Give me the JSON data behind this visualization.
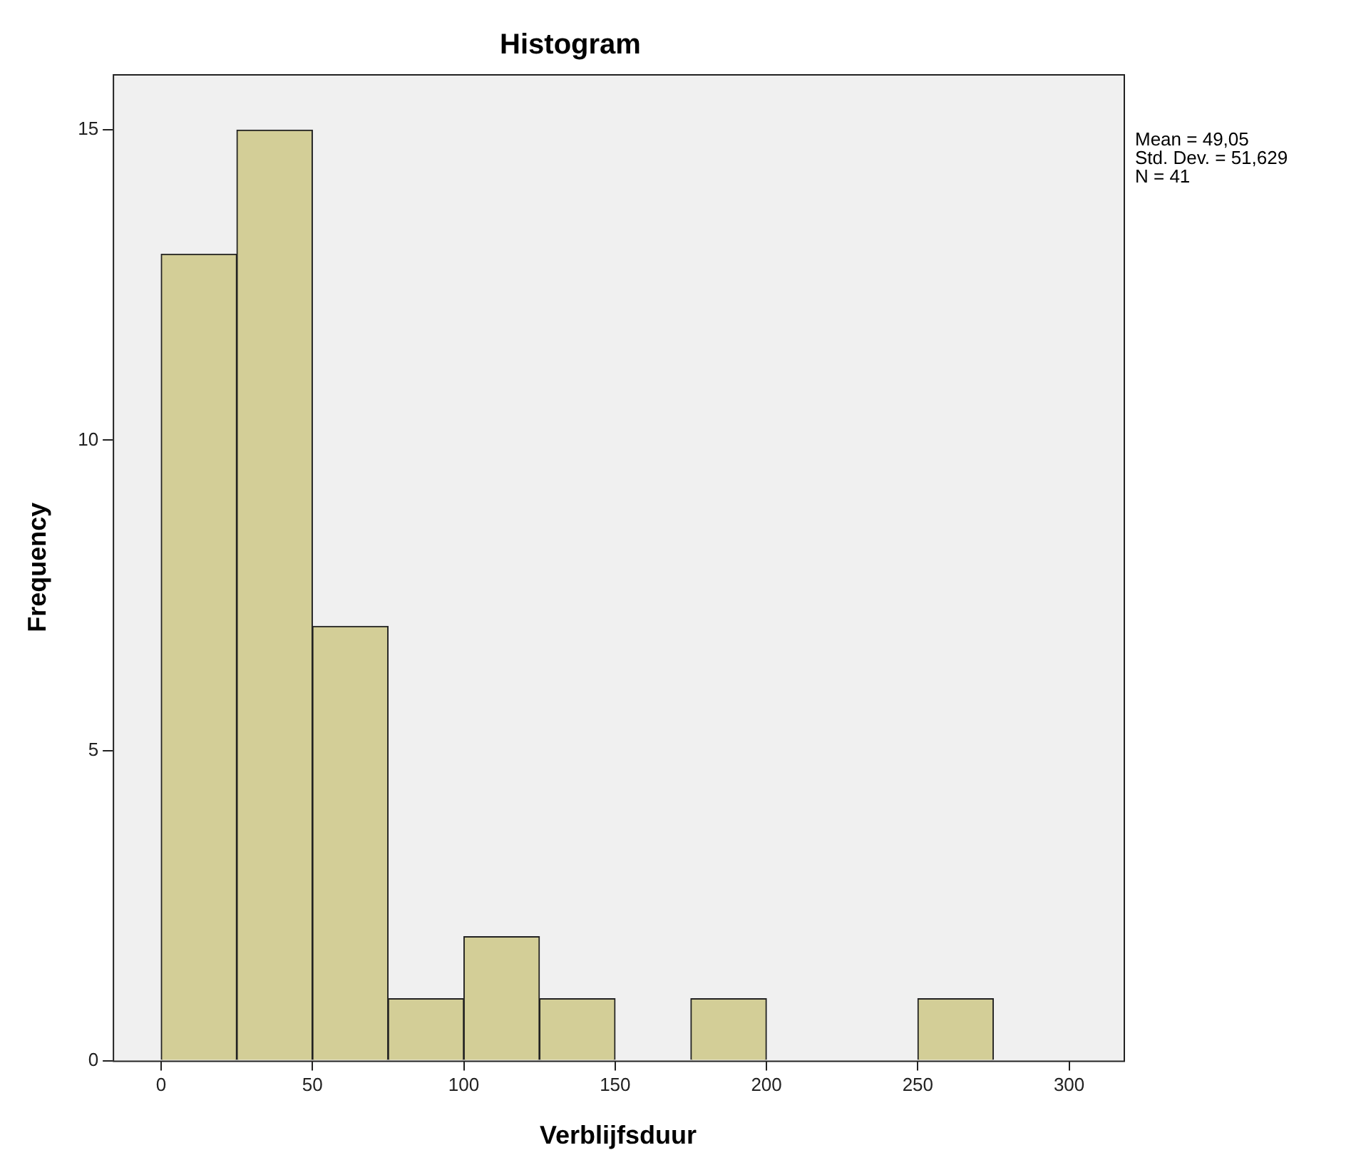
{
  "chart_data": {
    "type": "histogram",
    "title": "Histogram",
    "xlabel": "Verblijfsduur",
    "ylabel": "Frequency",
    "bins": [
      0,
      25,
      50,
      75,
      100,
      125,
      150,
      175,
      200,
      225,
      250,
      275
    ],
    "values": [
      13,
      15,
      7,
      1,
      2,
      1,
      0,
      1,
      0,
      0,
      1
    ],
    "color": "#d3ce97",
    "xlim": [
      -16,
      318
    ],
    "xticks": [
      0,
      50,
      100,
      150,
      200,
      250,
      300
    ],
    "ylim": [
      0,
      15.9
    ],
    "yticks": [
      0,
      5,
      10,
      15
    ],
    "grid": false,
    "legend": false,
    "annotations": [
      "Mean = 49,05",
      "Std. Dev. = 51,629",
      "N = 41"
    ]
  }
}
